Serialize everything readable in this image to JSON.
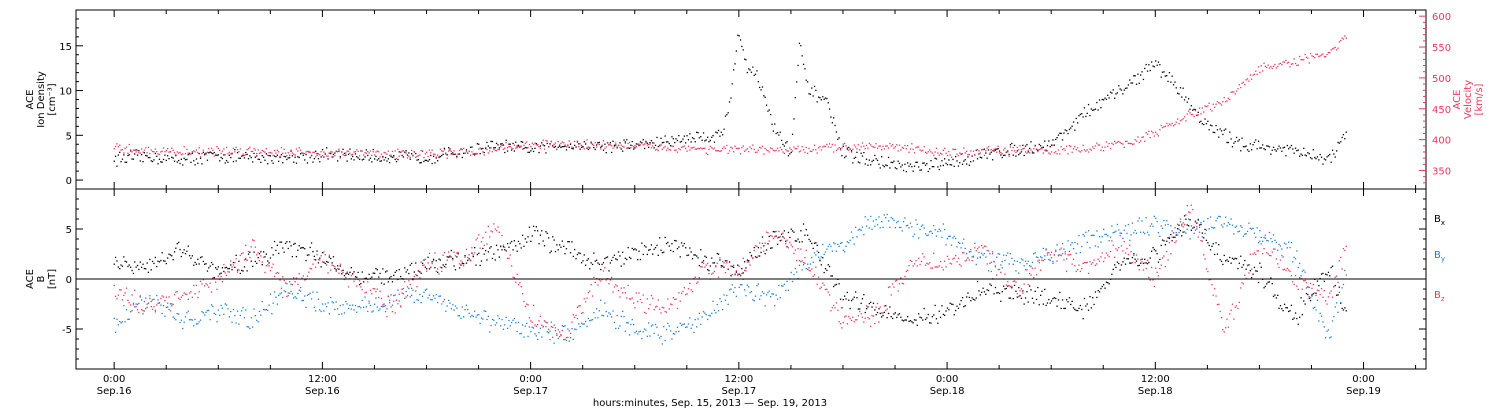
{
  "chart_data": [
    {
      "type": "scatter",
      "panel": "ion-density-and-velocity",
      "ylabel": [
        "ACE",
        "Ion Density",
        "[cm⁻³]"
      ],
      "y_ticks": [
        "0",
        "5",
        "10",
        "15"
      ],
      "ylim": [
        -1,
        19
      ],
      "y2label": [
        "ACE",
        "Velocity",
        "[km/s]"
      ],
      "y2_ticks": [
        "350",
        "400",
        "450",
        "500",
        "550",
        "600"
      ],
      "y2lim": [
        320,
        610
      ],
      "colors": {
        "density": "#000000",
        "velocity": "#e8385f"
      },
      "series": [
        {
          "name": "",
          "role": "density",
          "x_hours": [
            0,
            2,
            4,
            6,
            8,
            10,
            12,
            14,
            16,
            18,
            20,
            22,
            24,
            26,
            28,
            30,
            32,
            33,
            34,
            35,
            35.5,
            36,
            36.5,
            37,
            38,
            39,
            39.5,
            40,
            41,
            42,
            44,
            46,
            48,
            50,
            52,
            54,
            56,
            58,
            60,
            61,
            62,
            63,
            64,
            65,
            66,
            68,
            70,
            71
          ],
          "values": [
            2.4,
            2.6,
            2.3,
            2.7,
            2.4,
            2.6,
            2.8,
            2.7,
            2.5,
            2.6,
            3.1,
            3.8,
            3.4,
            4.0,
            3.8,
            3.9,
            4.3,
            4.8,
            4.8,
            5.0,
            9.0,
            16.5,
            12.5,
            12.0,
            6.0,
            3.0,
            15.0,
            10.0,
            9.0,
            3.0,
            2.0,
            1.3,
            1.8,
            2.8,
            3.4,
            4.0,
            7.5,
            10.0,
            13.0,
            11.0,
            8.5,
            6.0,
            5.0,
            4.0,
            3.8,
            3.2,
            2.2,
            5.0
          ]
        },
        {
          "name": "",
          "role": "velocity",
          "x_hours": [
            0,
            4,
            8,
            12,
            16,
            20,
            24,
            28,
            32,
            36,
            40,
            44,
            48,
            52,
            56,
            58,
            60,
            62,
            64,
            66,
            68,
            70,
            71
          ],
          "values": [
            385,
            380,
            382,
            378,
            377,
            378,
            392,
            392,
            387,
            383,
            383,
            392,
            378,
            382,
            385,
            392,
            410,
            440,
            462,
            515,
            525,
            540,
            565
          ]
        }
      ]
    },
    {
      "type": "scatter",
      "panel": "magnetic-field-components",
      "ylabel": [
        "ACE",
        "B",
        "[nT]"
      ],
      "y_ticks": [
        "-5",
        "0",
        "5"
      ],
      "ylim": [
        -9,
        9
      ],
      "zero_line": true,
      "legend_position": "right",
      "colors": {
        "Bx": "#000000",
        "By": "#1c7fd4",
        "Bz": "#e8385f"
      },
      "series": [
        {
          "name": "Bx",
          "x_hours": [
            0,
            2,
            4,
            6,
            8,
            10,
            12,
            14,
            16,
            18,
            20,
            22,
            24,
            26,
            28,
            30,
            32,
            34,
            36,
            38,
            40,
            42,
            44,
            46,
            48,
            50,
            52,
            54,
            56,
            58,
            60,
            62,
            64,
            66,
            68,
            70,
            71
          ],
          "values": [
            1.5,
            1.0,
            3.0,
            0.5,
            2.0,
            3.5,
            2.0,
            0.5,
            0.0,
            1.5,
            2.0,
            2.5,
            4.5,
            3.0,
            1.5,
            2.5,
            3.5,
            2.0,
            1.0,
            4.0,
            4.5,
            -2.0,
            -3.0,
            -4.0,
            -3.5,
            -1.0,
            -1.5,
            -2.0,
            -3.0,
            1.5,
            2.5,
            6.0,
            2.0,
            0.5,
            -4.0,
            1.0,
            -3.0
          ]
        },
        {
          "name": "By",
          "x_hours": [
            0,
            2,
            4,
            6,
            8,
            10,
            12,
            14,
            16,
            18,
            20,
            22,
            24,
            26,
            28,
            30,
            32,
            34,
            36,
            38,
            40,
            42,
            44,
            46,
            48,
            50,
            52,
            54,
            56,
            58,
            60,
            62,
            64,
            66,
            68,
            70,
            71
          ],
          "values": [
            -4.5,
            -2.0,
            -4.0,
            -3.5,
            -4.0,
            -1.0,
            -2.5,
            -3.0,
            -2.0,
            -1.5,
            -3.0,
            -4.5,
            -5.0,
            -5.5,
            -3.0,
            -5.0,
            -5.5,
            -4.0,
            -0.5,
            -2.0,
            2.0,
            3.5,
            6.0,
            5.0,
            4.5,
            2.0,
            1.5,
            2.5,
            4.0,
            4.5,
            5.5,
            5.0,
            6.0,
            4.5,
            2.5,
            -6.0,
            1.0
          ]
        },
        {
          "name": "Bz",
          "x_hours": [
            0,
            2,
            4,
            6,
            8,
            10,
            12,
            14,
            16,
            18,
            20,
            22,
            24,
            26,
            28,
            30,
            32,
            34,
            36,
            38,
            40,
            42,
            44,
            46,
            48,
            50,
            52,
            54,
            56,
            58,
            60,
            62,
            64,
            66,
            68,
            70,
            71
          ],
          "values": [
            -1.0,
            -3.0,
            -1.5,
            0.0,
            3.0,
            -1.0,
            2.0,
            -0.5,
            -3.0,
            1.5,
            2.0,
            5.0,
            -3.5,
            -6.0,
            0.5,
            -2.0,
            -3.0,
            1.0,
            1.0,
            4.5,
            2.0,
            -4.5,
            -3.5,
            2.0,
            1.5,
            3.0,
            -1.0,
            2.5,
            1.0,
            3.5,
            0.0,
            7.5,
            -5.5,
            4.0,
            0.0,
            -2.0,
            3.0
          ]
        }
      ]
    }
  ],
  "x_axis": {
    "tick_labels": [
      {
        "time": "0:00",
        "date": "Sep.16",
        "hours": 0
      },
      {
        "time": "12:00",
        "date": "Sep.16",
        "hours": 12
      },
      {
        "time": "0:00",
        "date": "Sep.17",
        "hours": 24
      },
      {
        "time": "12:00",
        "date": "Sep.17",
        "hours": 36
      },
      {
        "time": "0:00",
        "date": "Sep.18",
        "hours": 48
      },
      {
        "time": "12:00",
        "date": "Sep.18",
        "hours": 60
      },
      {
        "time": "0:00",
        "date": "Sep.19",
        "hours": 72
      }
    ],
    "range_hours": [
      -2.2,
      75.6
    ],
    "title": "hours:minutes, Sep. 15, 2013 — Sep. 19, 2013"
  }
}
